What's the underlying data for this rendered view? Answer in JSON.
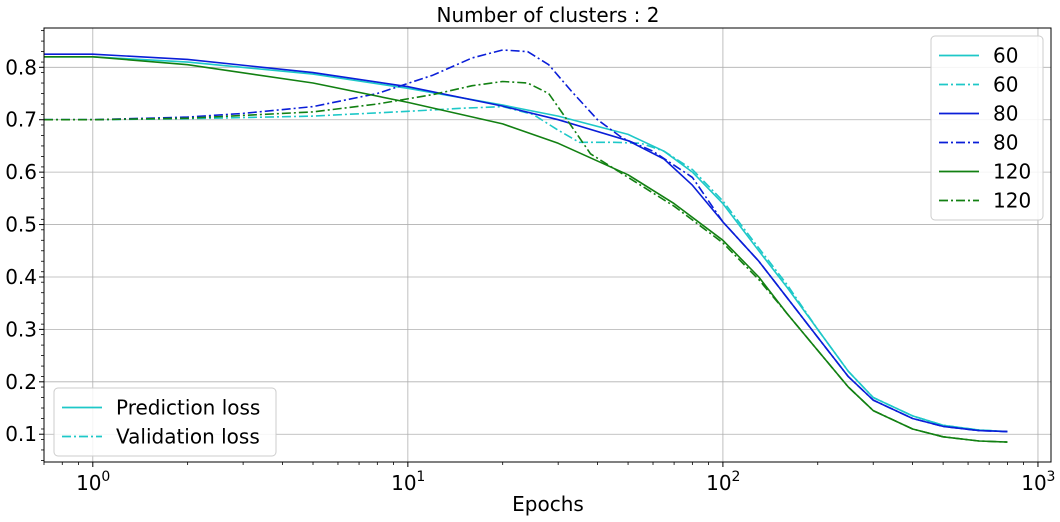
{
  "chart_data": {
    "type": "line",
    "title": "Number of clusters : 2",
    "xlabel": "Epochs",
    "ylabel": "",
    "xscale": "log",
    "xlim": [
      0.7,
      1100
    ],
    "ylim": [
      0.047,
      0.875
    ],
    "grid": true,
    "x_ticks": [
      {
        "value": 1,
        "base": "10",
        "exp": "0"
      },
      {
        "value": 10,
        "base": "10",
        "exp": "1"
      },
      {
        "value": 100,
        "base": "10",
        "exp": "2"
      },
      {
        "value": 1000,
        "base": "10",
        "exp": "3"
      }
    ],
    "y_ticks": [
      {
        "value": 0.1,
        "label": "0.1"
      },
      {
        "value": 0.2,
        "label": "0.2"
      },
      {
        "value": 0.3,
        "label": "0.3"
      },
      {
        "value": 0.4,
        "label": "0.4"
      },
      {
        "value": 0.5,
        "label": "0.5"
      },
      {
        "value": 0.6,
        "label": "0.6"
      },
      {
        "value": 0.7,
        "label": "0.7"
      },
      {
        "value": 0.8,
        "label": "0.8"
      }
    ],
    "series": [
      {
        "name": "60",
        "style": "solid",
        "color": "#1ec8c8",
        "points": [
          [
            0.7,
            0.82
          ],
          [
            1,
            0.82
          ],
          [
            2,
            0.81
          ],
          [
            5,
            0.787
          ],
          [
            10,
            0.76
          ],
          [
            20,
            0.728
          ],
          [
            30,
            0.707
          ],
          [
            50,
            0.672
          ],
          [
            65,
            0.64
          ],
          [
            80,
            0.6
          ],
          [
            100,
            0.54
          ],
          [
            130,
            0.45
          ],
          [
            160,
            0.38
          ],
          [
            200,
            0.3
          ],
          [
            250,
            0.22
          ],
          [
            300,
            0.17
          ],
          [
            400,
            0.135
          ],
          [
            500,
            0.117
          ],
          [
            650,
            0.108
          ],
          [
            800,
            0.105
          ]
        ]
      },
      {
        "name": "60",
        "style": "dashdot",
        "color": "#1ec8c8",
        "points": [
          [
            0.7,
            0.7
          ],
          [
            1,
            0.7
          ],
          [
            2,
            0.702
          ],
          [
            5,
            0.707
          ],
          [
            10,
            0.716
          ],
          [
            15,
            0.722
          ],
          [
            20,
            0.725
          ],
          [
            25,
            0.71
          ],
          [
            30,
            0.68
          ],
          [
            35,
            0.657
          ],
          [
            45,
            0.657
          ],
          [
            55,
            0.655
          ],
          [
            65,
            0.64
          ],
          [
            80,
            0.605
          ],
          [
            100,
            0.545
          ],
          [
            130,
            0.455
          ],
          [
            160,
            0.385
          ],
          [
            200,
            0.3
          ],
          [
            250,
            0.22
          ],
          [
            300,
            0.17
          ],
          [
            400,
            0.135
          ],
          [
            500,
            0.117
          ],
          [
            650,
            0.108
          ],
          [
            800,
            0.105
          ]
        ]
      },
      {
        "name": "80",
        "style": "solid",
        "color": "#0a1ed8",
        "points": [
          [
            0.7,
            0.825
          ],
          [
            1,
            0.825
          ],
          [
            2,
            0.815
          ],
          [
            5,
            0.79
          ],
          [
            10,
            0.763
          ],
          [
            20,
            0.726
          ],
          [
            30,
            0.7
          ],
          [
            50,
            0.66
          ],
          [
            65,
            0.625
          ],
          [
            80,
            0.575
          ],
          [
            100,
            0.505
          ],
          [
            130,
            0.43
          ],
          [
            160,
            0.36
          ],
          [
            200,
            0.285
          ],
          [
            250,
            0.21
          ],
          [
            300,
            0.165
          ],
          [
            400,
            0.13
          ],
          [
            500,
            0.115
          ],
          [
            650,
            0.107
          ],
          [
            800,
            0.105
          ]
        ]
      },
      {
        "name": "80",
        "style": "dashdot",
        "color": "#0a1ed8",
        "points": [
          [
            0.7,
            0.7
          ],
          [
            1,
            0.7
          ],
          [
            2,
            0.705
          ],
          [
            3,
            0.712
          ],
          [
            5,
            0.725
          ],
          [
            8,
            0.75
          ],
          [
            12,
            0.785
          ],
          [
            16,
            0.818
          ],
          [
            20,
            0.833
          ],
          [
            24,
            0.83
          ],
          [
            28,
            0.805
          ],
          [
            33,
            0.755
          ],
          [
            40,
            0.7
          ],
          [
            48,
            0.665
          ],
          [
            60,
            0.64
          ],
          [
            80,
            0.59
          ],
          [
            100,
            0.505
          ],
          [
            130,
            0.43
          ],
          [
            160,
            0.36
          ],
          [
            200,
            0.285
          ],
          [
            250,
            0.21
          ],
          [
            300,
            0.165
          ],
          [
            400,
            0.13
          ],
          [
            500,
            0.115
          ],
          [
            650,
            0.107
          ],
          [
            800,
            0.105
          ]
        ]
      },
      {
        "name": "120",
        "style": "solid",
        "color": "#128012",
        "points": [
          [
            0.7,
            0.82
          ],
          [
            1,
            0.82
          ],
          [
            2,
            0.805
          ],
          [
            5,
            0.77
          ],
          [
            10,
            0.733
          ],
          [
            20,
            0.692
          ],
          [
            30,
            0.655
          ],
          [
            50,
            0.595
          ],
          [
            70,
            0.54
          ],
          [
            100,
            0.47
          ],
          [
            130,
            0.4
          ],
          [
            160,
            0.33
          ],
          [
            200,
            0.26
          ],
          [
            250,
            0.19
          ],
          [
            300,
            0.145
          ],
          [
            400,
            0.11
          ],
          [
            500,
            0.095
          ],
          [
            650,
            0.087
          ],
          [
            800,
            0.085
          ]
        ]
      },
      {
        "name": "120",
        "style": "dashdot",
        "color": "#128012",
        "points": [
          [
            0.7,
            0.7
          ],
          [
            1,
            0.7
          ],
          [
            2,
            0.703
          ],
          [
            5,
            0.715
          ],
          [
            8,
            0.73
          ],
          [
            12,
            0.748
          ],
          [
            16,
            0.765
          ],
          [
            20,
            0.773
          ],
          [
            24,
            0.77
          ],
          [
            28,
            0.75
          ],
          [
            32,
            0.7
          ],
          [
            38,
            0.635
          ],
          [
            50,
            0.59
          ],
          [
            70,
            0.535
          ],
          [
            100,
            0.465
          ],
          [
            130,
            0.395
          ],
          [
            160,
            0.33
          ],
          [
            200,
            0.26
          ],
          [
            250,
            0.19
          ],
          [
            300,
            0.145
          ],
          [
            400,
            0.11
          ],
          [
            500,
            0.095
          ],
          [
            650,
            0.087
          ],
          [
            800,
            0.085
          ]
        ]
      }
    ],
    "legend_series": {
      "placement": "top-right",
      "entries": [
        {
          "label": "60",
          "style": "solid",
          "color": "#1ec8c8"
        },
        {
          "label": "60",
          "style": "dashdot",
          "color": "#1ec8c8"
        },
        {
          "label": "80",
          "style": "solid",
          "color": "#0a1ed8"
        },
        {
          "label": "80",
          "style": "dashdot",
          "color": "#0a1ed8"
        },
        {
          "label": "120",
          "style": "solid",
          "color": "#128012"
        },
        {
          "label": "120",
          "style": "dashdot",
          "color": "#128012"
        }
      ]
    },
    "legend_loss": {
      "placement": "bottom-left",
      "entries": [
        {
          "label": "Prediction loss",
          "style": "solid",
          "color": "#1ec8c8"
        },
        {
          "label": "Validation loss",
          "style": "dashdot",
          "color": "#1ec8c8"
        }
      ]
    }
  }
}
